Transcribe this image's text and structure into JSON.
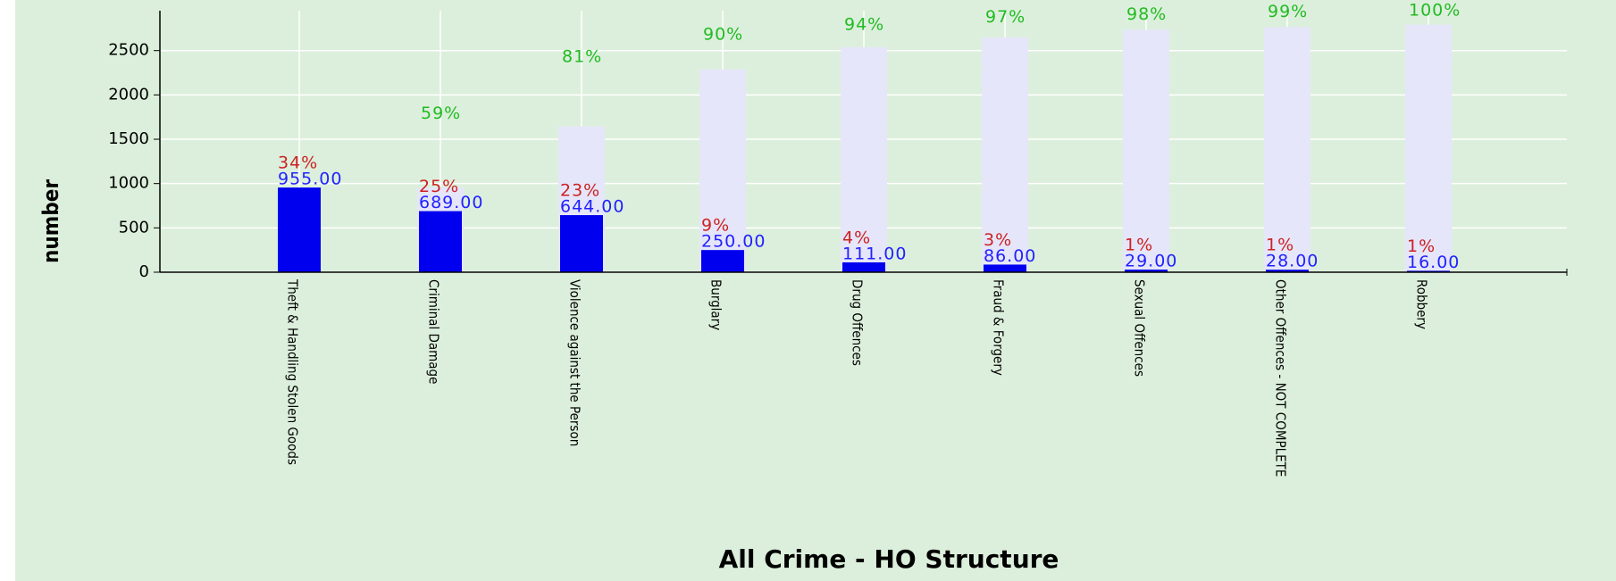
{
  "chart_data": {
    "type": "pareto",
    "title": "All Crime - HO Structure",
    "y_label": "number",
    "categories": [
      "Theft & Handling Stolen Goods",
      "Criminal Damage",
      "Violence against the Person",
      "Burglary",
      "Drug Offences",
      "Fraud & Forgery",
      "Sexual Offences",
      "Other Offences - NOT COMPLETE",
      "Robbery"
    ],
    "values": [
      955,
      689,
      644,
      250,
      111,
      86,
      29,
      28,
      16
    ],
    "value_labels": [
      "955.00",
      "689.00",
      "644.00",
      "250.00",
      "111.00",
      "86.00",
      "29.00",
      "28.00",
      "16.00"
    ],
    "percent": [
      34,
      25,
      23,
      9,
      4,
      3,
      1,
      1,
      1
    ],
    "percent_labels": [
      "34%",
      "25%",
      "23%",
      "9%",
      "4%",
      "3%",
      "1%",
      "1%",
      "1%"
    ],
    "cumulative_percent": [
      null,
      59,
      81,
      90,
      94,
      97,
      98,
      99,
      100
    ],
    "cumulative_percent_labels": [
      null,
      "59%",
      "81%",
      "90%",
      "94%",
      "97%",
      "98%",
      "99%",
      "100%"
    ],
    "color": "#0000ee",
    "cumulative_color": "#e6e6fa",
    "percent_color": "#cc2222",
    "cumulative_percent_color": "#22bb22",
    "ylim": [
      0,
      2950
    ],
    "yticks": [
      0,
      500,
      1000,
      1500,
      2000,
      2500
    ],
    "grid": true
  }
}
